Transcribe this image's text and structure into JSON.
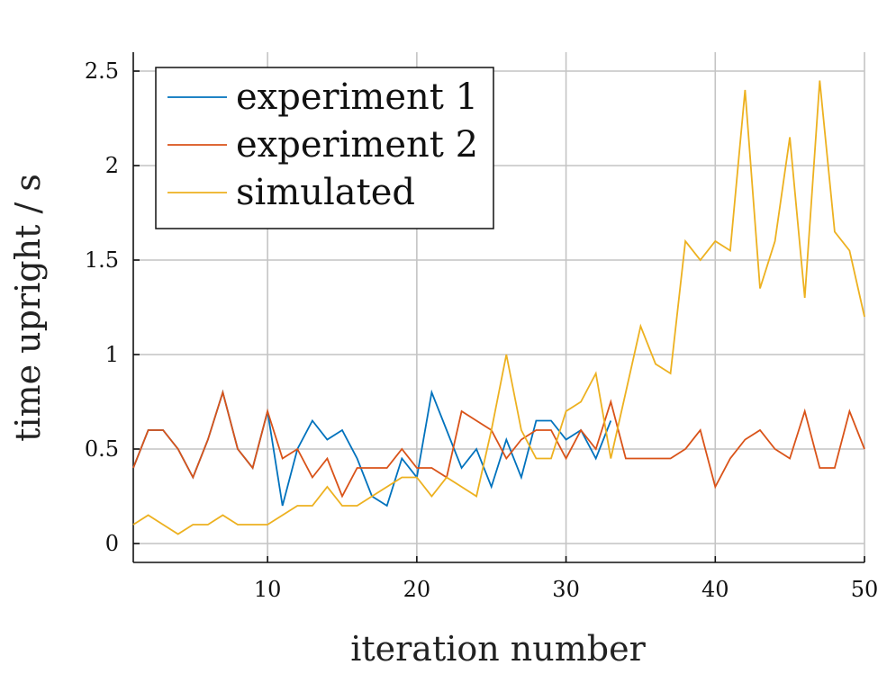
{
  "chart_data": {
    "type": "line",
    "xlabel": "iteration number",
    "ylabel": "time upright / s",
    "xlim": [
      1,
      50
    ],
    "ylim": [
      -0.1,
      2.6
    ],
    "xticks": [
      10,
      20,
      30,
      40,
      50
    ],
    "yticks": [
      0,
      0.5,
      1,
      1.5,
      2,
      2.5
    ],
    "xtick_labels": [
      "10",
      "20",
      "30",
      "40",
      "50"
    ],
    "ytick_labels": [
      "0",
      "0.5",
      "1",
      "1.5",
      "2",
      "2.5"
    ],
    "grid": true,
    "legend_position": "top-left",
    "series": [
      {
        "name": "experiment 1",
        "color": "#0072bd",
        "x": [
          1,
          2,
          3,
          4,
          5,
          6,
          7,
          8,
          9,
          10,
          11,
          12,
          13,
          14,
          15,
          16,
          17,
          18,
          19,
          20,
          21,
          22,
          23,
          24,
          25,
          26,
          27,
          28,
          29,
          30,
          31,
          32,
          33
        ],
        "y": [
          0.4,
          0.6,
          0.6,
          0.5,
          0.35,
          0.55,
          0.8,
          0.5,
          0.4,
          0.7,
          0.2,
          0.5,
          0.65,
          0.55,
          0.6,
          0.45,
          0.25,
          0.2,
          0.45,
          0.35,
          0.8,
          0.6,
          0.4,
          0.5,
          0.3,
          0.55,
          0.35,
          0.65,
          0.65,
          0.55,
          0.6,
          0.45,
          0.65
        ]
      },
      {
        "name": "experiment 2",
        "color": "#d95319",
        "x": [
          1,
          2,
          3,
          4,
          5,
          6,
          7,
          8,
          9,
          10,
          11,
          12,
          13,
          14,
          15,
          16,
          17,
          18,
          19,
          20,
          21,
          22,
          23,
          24,
          25,
          26,
          27,
          28,
          29,
          30,
          31,
          32,
          33,
          34,
          35,
          36,
          37,
          38,
          39,
          40,
          41,
          42,
          43,
          44,
          45,
          46,
          47,
          48,
          49,
          50
        ],
        "y": [
          0.4,
          0.6,
          0.6,
          0.5,
          0.35,
          0.55,
          0.8,
          0.5,
          0.4,
          0.7,
          0.45,
          0.5,
          0.35,
          0.45,
          0.25,
          0.4,
          0.4,
          0.4,
          0.5,
          0.4,
          0.4,
          0.35,
          0.7,
          0.65,
          0.6,
          0.45,
          0.55,
          0.6,
          0.6,
          0.45,
          0.6,
          0.5,
          0.75,
          0.45,
          0.45,
          0.45,
          0.45,
          0.5,
          0.6,
          0.3,
          0.45,
          0.55,
          0.6,
          0.5,
          0.45,
          0.7,
          0.4,
          0.4,
          0.7,
          0.5
        ]
      },
      {
        "name": "simulated",
        "color": "#edb120",
        "x": [
          1,
          2,
          3,
          4,
          5,
          6,
          7,
          8,
          9,
          10,
          11,
          12,
          13,
          14,
          15,
          16,
          17,
          18,
          19,
          20,
          21,
          22,
          23,
          24,
          25,
          26,
          27,
          28,
          29,
          30,
          31,
          32,
          33,
          34,
          35,
          36,
          37,
          38,
          39,
          40,
          41,
          42,
          43,
          44,
          45,
          46,
          47,
          48,
          49,
          50
        ],
        "y": [
          0.1,
          0.15,
          0.1,
          0.05,
          0.1,
          0.1,
          0.15,
          0.1,
          0.1,
          0.1,
          0.15,
          0.2,
          0.2,
          0.3,
          0.2,
          0.2,
          0.25,
          0.3,
          0.35,
          0.35,
          0.25,
          0.35,
          0.3,
          0.25,
          0.6,
          1.0,
          0.6,
          0.45,
          0.45,
          0.7,
          0.75,
          0.9,
          0.45,
          0.8,
          1.15,
          0.95,
          0.9,
          1.6,
          1.5,
          1.6,
          1.55,
          2.4,
          1.35,
          1.6,
          2.15,
          1.3,
          2.45,
          1.65,
          1.55,
          1.2
        ]
      }
    ]
  }
}
